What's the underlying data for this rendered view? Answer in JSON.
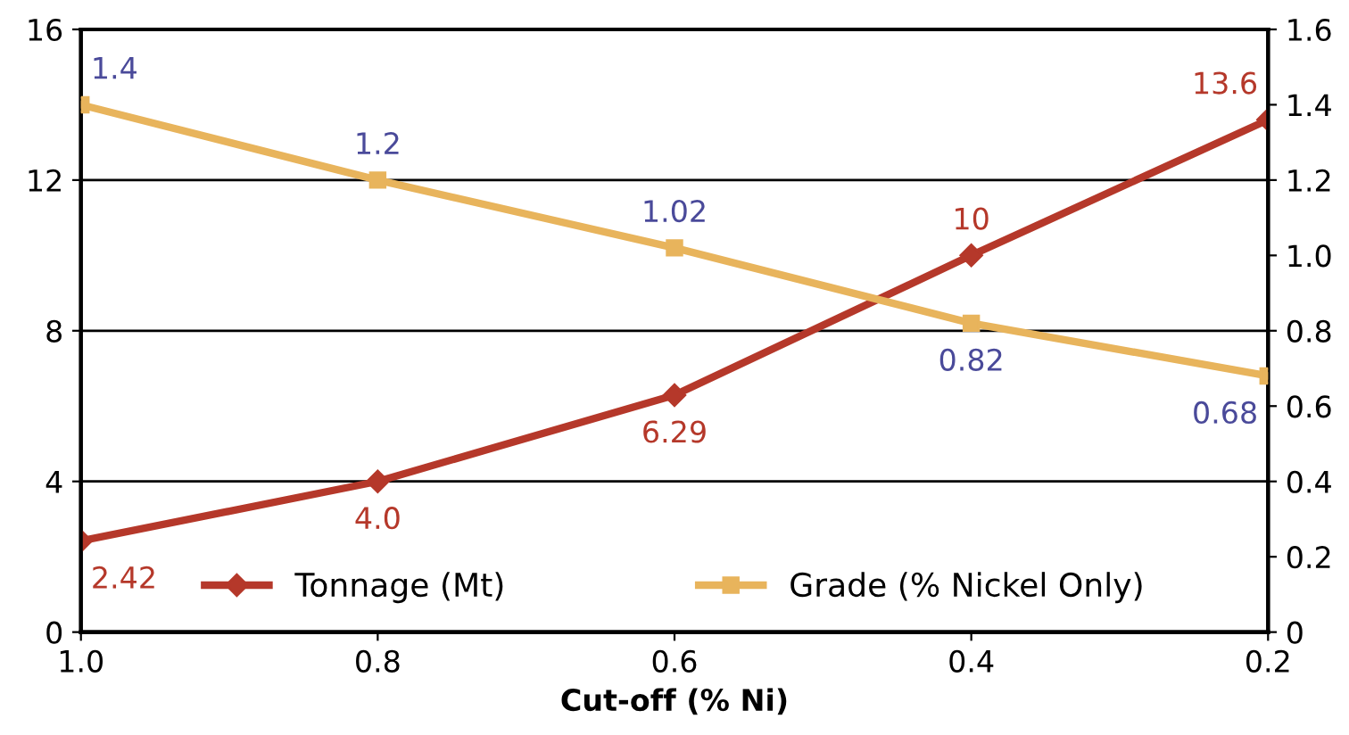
{
  "chart_data": {
    "type": "line",
    "xlabel": "Cut-off (% Ni)",
    "x": [
      1.0,
      0.8,
      0.6,
      0.4,
      0.2
    ],
    "xlim": [
      1.0,
      0.2
    ],
    "xticks": [
      {
        "value": 1.0,
        "label": "1.0"
      },
      0.8,
      0.6,
      0.4,
      0.2
    ],
    "ylim": [
      0,
      16
    ],
    "yticks": [
      0,
      4,
      8,
      12,
      16
    ],
    "y2lim": [
      0,
      1.6
    ],
    "y2ticks": [
      0,
      0.2,
      0.4,
      0.6,
      0.8,
      {
        "value": 1.0,
        "label": "1.0"
      },
      1.2,
      1.4,
      1.6
    ],
    "series": [
      {
        "name": "Tonnage (Mt)",
        "color": "#b5382a",
        "marker": "diamond",
        "values": [
          2.42,
          4.0,
          6.29,
          10,
          13.6
        ],
        "value_labels": [
          "2.42",
          "4.0",
          "6.29",
          "10",
          "13.6"
        ]
      },
      {
        "name": "Grade (% Nickel Only)",
        "color": "#e8b45c",
        "marker": "square",
        "axis": "y2",
        "values": [
          1.4,
          1.2,
          1.02,
          0.82,
          0.68
        ],
        "value_labels": [
          "1.4",
          "1.2",
          "1.02",
          "0.82",
          "0.68"
        ]
      }
    ],
    "grid": "y",
    "legend": "bottom",
    "line_style": "solid"
  }
}
